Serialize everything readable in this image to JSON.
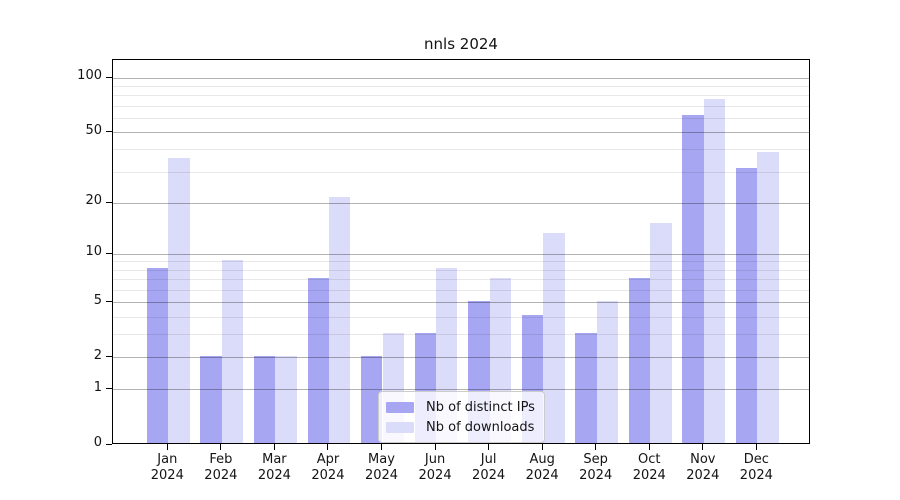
{
  "title": "nnls 2024",
  "legend": {
    "items": [
      {
        "label": "Nb of distinct IPs",
        "color": "#a6a6f2"
      },
      {
        "label": "Nb of downloads",
        "color": "#dbdbfa"
      }
    ]
  },
  "chart_data": {
    "type": "bar",
    "title": "nnls 2024",
    "categories": [
      "Jan 2024",
      "Feb 2024",
      "Mar 2024",
      "Apr 2024",
      "May 2024",
      "Jun 2024",
      "Jul 2024",
      "Aug 2024",
      "Sep 2024",
      "Oct 2024",
      "Nov 2024",
      "Dec 2024"
    ],
    "series": [
      {
        "name": "Nb of distinct IPs",
        "color": "#a6a6f2",
        "values": [
          8,
          2,
          2,
          7,
          2,
          3,
          5,
          4,
          3,
          7,
          61,
          31
        ]
      },
      {
        "name": "Nb of downloads",
        "color": "#dbdbfa",
        "values": [
          35,
          9,
          2,
          21,
          3,
          8,
          7,
          13,
          5,
          15,
          75,
          38
        ]
      }
    ],
    "xlabel": "",
    "ylabel": "",
    "yscale": "log1p",
    "ylim": [
      0,
      126
    ],
    "y_major_ticks": [
      0,
      1,
      2,
      5,
      10,
      20,
      50,
      100
    ],
    "y_minor_ticks": [
      3,
      4,
      6,
      7,
      8,
      9,
      30,
      40,
      60,
      70,
      80,
      90
    ],
    "grid": true,
    "legend_position": "lower center"
  },
  "colors": {
    "bar_distinct_ips": "#a6a6f2",
    "bar_downloads": "#dbdbfa",
    "major_grid": "rgba(0,0,0,0.30)",
    "minor_grid": "rgba(0,0,0,0.09)",
    "spine": "#000000",
    "text": "#141414",
    "background": "#ffffff"
  }
}
